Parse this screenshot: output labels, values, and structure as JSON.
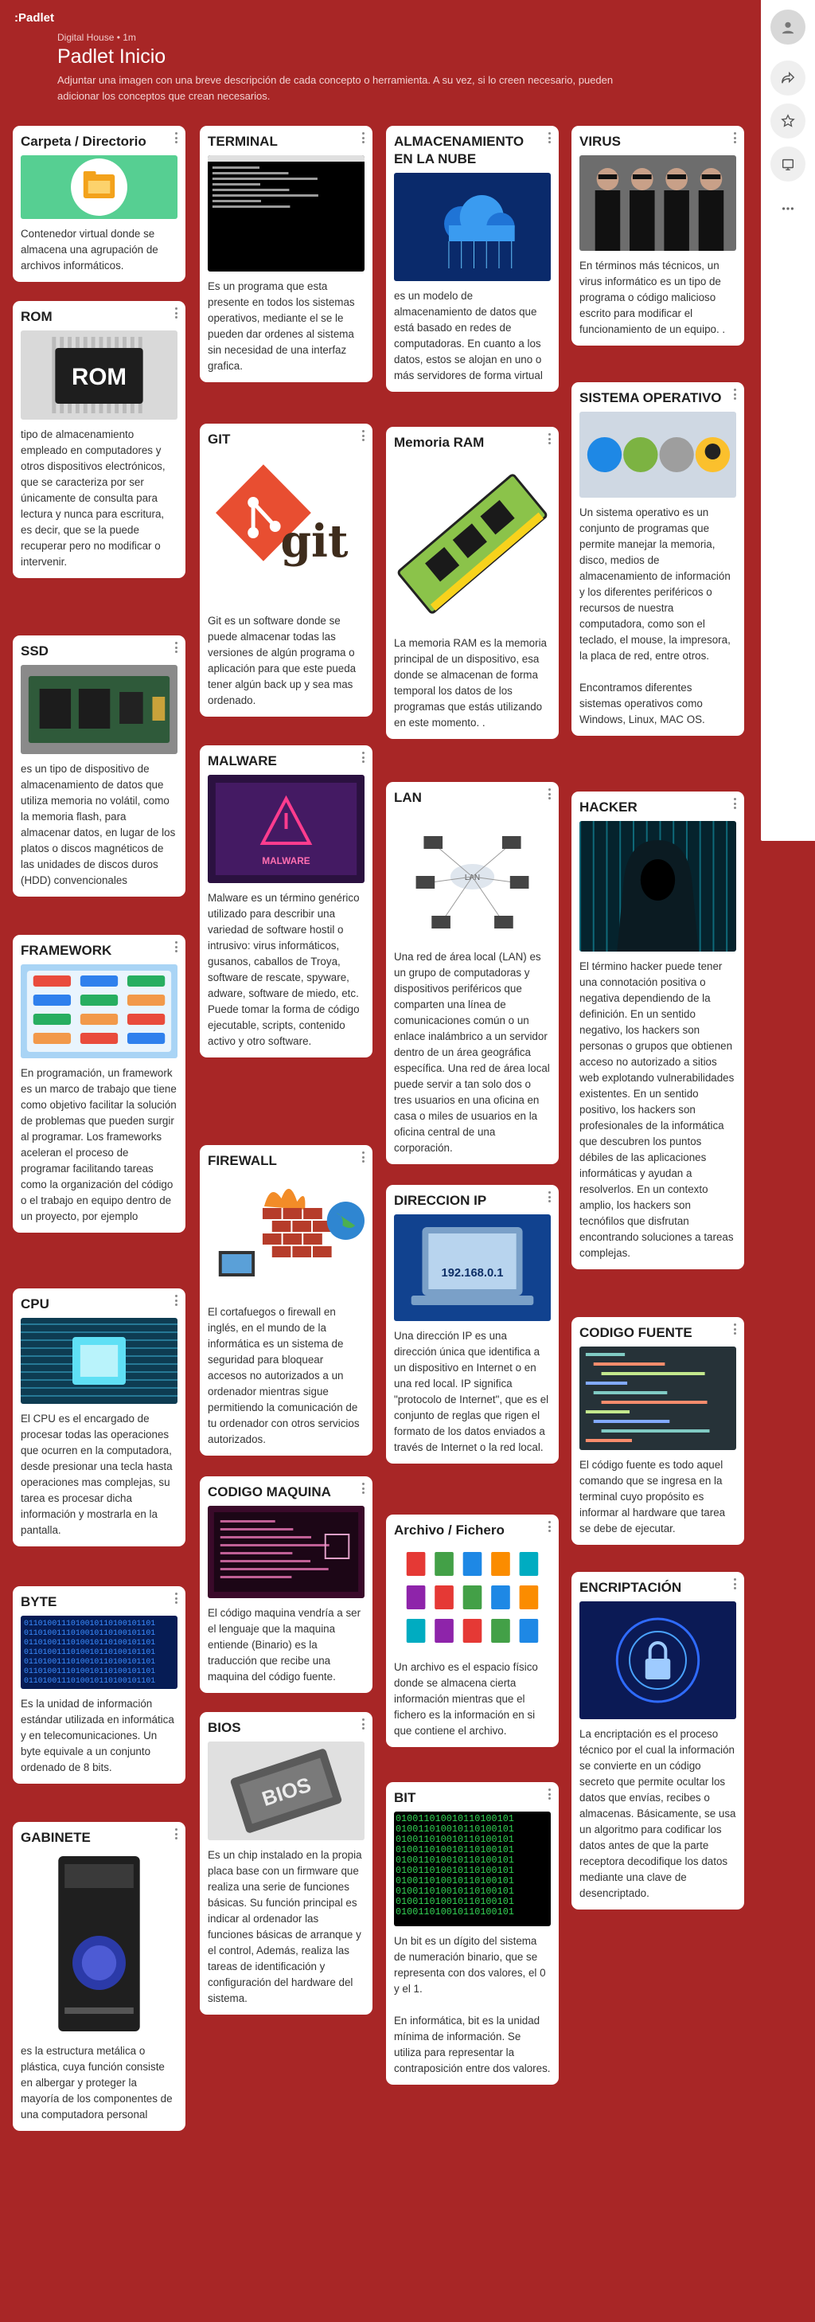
{
  "app": {
    "logo": ":Padlet"
  },
  "header": {
    "meta": "Digital House • 1m",
    "title": "Padlet Inicio",
    "description": "Adjuntar una imagen con una breve descripción de cada concepto o herramienta. A su vez, si lo creen necesario, pueden adicionar los conceptos que crean necesarios."
  },
  "rail": {
    "icons": [
      "avatar-icon",
      "share-icon",
      "star-icon",
      "slideshow-icon",
      "more-icon"
    ]
  },
  "columns": [
    [
      {
        "title": "Carpeta / Directorio",
        "image": "folder",
        "text": "Contenedor virtual donde se almacena una agrupación de archivos informáticos."
      },
      {
        "title": "ROM",
        "image": "rom-chip",
        "text": "tipo de almacenamiento empleado en computadores y otros dispositivos electrónicos, que se caracteriza por ser únicamente de consulta para lectura y nunca para escritura, es decir, que se la puede recuperar pero no modificar o intervenir."
      },
      {
        "title": "SSD",
        "image": "ssd",
        "text": "es un tipo de dispositivo de almacenamiento de datos que utiliza memoria no volátil, como la memoria flash, para almacenar datos, en lugar de los platos o discos magnéticos de las unidades de discos duros (HDD) convencionales"
      },
      {
        "title": "FRAMEWORK",
        "image": "frameworks",
        "text": "En programación, un framework es un marco de trabajo que tiene como objetivo facilitar la solución de problemas que pueden surgir al programar. Los frameworks aceleran el proceso de programar facilitando tareas como la organización del código o el trabajo en equipo dentro de un proyecto, por ejemplo"
      },
      {
        "title": "CPU",
        "image": "cpu",
        "text": "El CPU es el encargado de procesar todas las operaciones que ocurren en la computadora, desde presionar una tecla hasta operaciones mas complejas, su tarea es procesar dicha información y mostrarla en la pantalla."
      },
      {
        "title": "BYTE",
        "image": "byte",
        "text": "Es la unidad de información estándar utilizada en informática y en telecomunicaciones. Un byte equivale a un conjunto ordenado de 8 bits."
      },
      {
        "title": "GABINETE",
        "image": "case",
        "text": "es la estructura metálica o plástica, cuya función consiste en albergar y proteger la mayoría de los componentes de una computadora personal"
      }
    ],
    [
      {
        "title": "TERMINAL",
        "image": "terminal",
        "text": "Es un programa que esta presente en todos los sistemas operativos, mediante el se le pueden dar ordenes al sistema sin necesidad de una interfaz grafica."
      },
      {
        "title": "GIT",
        "image": "git",
        "text": "Git es un software donde se puede almacenar todas las versiones de algún programa o aplicación para que este pueda tener algún back up y sea mas ordenado."
      },
      {
        "title": "MALWARE",
        "image": "malware",
        "text": "Malware es un término genérico utilizado para describir una variedad de software hostil o intrusivo: virus informáticos, gusanos, caballos de Troya, software de rescate, spyware, adware, software de miedo, etc. Puede tomar la forma de código ejecutable, scripts, contenido activo y otro software."
      },
      {
        "title": "FIREWALL",
        "image": "firewall",
        "text": "El cortafuegos o firewall en inglés, en el mundo de la informática es un sistema de seguridad para bloquear accesos no autorizados a un ordenador mientras sigue permitiendo la comunicación de tu ordenador con otros servicios autorizados."
      },
      {
        "title": "CODIGO MAQUINA",
        "image": "machine-code",
        "text": "El código maquina vendría a ser el lenguaje que la maquina entiende (Binario) es la traducción que recibe una maquina del código fuente."
      },
      {
        "title": "BIOS",
        "image": "bios",
        "text": "Es un chip instalado en la propia placa base con un firmware que realiza una serie de funciones básicas. Su función principal es indicar al ordenador las funciones básicas de arranque y el control, Además, realiza las tareas de identificación y configuración del hardware del sistema."
      }
    ],
    [
      {
        "title": "ALMACENAMIENTO EN LA NUBE",
        "image": "cloud",
        "text": "es un modelo de almacenamiento de datos que está basado en redes de computadoras. En cuanto a los datos, estos se alojan en uno o más servidores de forma virtual"
      },
      {
        "title": "Memoria RAM",
        "image": "ram",
        "text": "La memoria RAM es la memoria principal de un dispositivo, esa donde se almacenan de forma temporal los datos de los programas que estás utilizando en este momento. ."
      },
      {
        "title": "LAN",
        "image": "lan",
        "text": "Una red de área local (LAN) es un grupo de computadoras y dispositivos periféricos que comparten una línea de comunicaciones común o un enlace inalámbrico a un servidor dentro de un área geográfica específica. Una red de área local puede servir a tan solo dos o tres usuarios en una oficina en casa o miles de usuarios en la oficina central de una corporación."
      },
      {
        "title": "DIRECCION IP",
        "image": "ip",
        "text": "Una dirección IP es una dirección única que identifica a un dispositivo en Internet o en una red local. IP significa \"protocolo de Internet\", que es el conjunto de reglas que rigen el formato de los datos enviados a través de Internet o la red local."
      },
      {
        "title": "Archivo / Fichero",
        "image": "files",
        "text": "Un archivo es el espacio físico donde se almacena cierta información mientras que el fichero es la información en si que contiene el archivo."
      },
      {
        "title": "BIT",
        "image": "bit",
        "text": "Un bit es un dígito del sistema de numeración binario, que se representa con dos valores, el 0 y el 1.\n\nEn informática, bit es la unidad mínima de información. Se utiliza para representar la contraposición entre dos valores."
      }
    ],
    [
      {
        "title": "VIRUS",
        "image": "virus",
        "text": "En términos más técnicos, un virus informático es un tipo de programa o código malicioso escrito para modificar el funcionamiento de un equipo. ."
      },
      {
        "title": "SISTEMA OPERATIVO",
        "image": "os",
        "text": "Un sistema operativo es un conjunto de programas que permite manejar la memoria, disco, medios de almacenamiento de información y los diferentes periféricos o recursos de nuestra computadora, como son el teclado, el mouse, la impresora, la placa de red, entre otros.\n\nEncontramos diferentes sistemas operativos como Windows, Linux, MAC OS."
      },
      {
        "title": "HACKER",
        "image": "hacker",
        "text": "El término hacker puede tener una connotación positiva o negativa dependiendo de la definición. En un sentido negativo, los hackers son personas o grupos que obtienen acceso no autorizado a sitios web explotando vulnerabilidades existentes. En un sentido positivo, los hackers son profesionales de la informática que descubren los puntos débiles de las aplicaciones informáticas y ayudan a resolverlos. En un contexto amplio, los hackers son tecnófilos que disfrutan encontrando soluciones a tareas complejas."
      },
      {
        "title": "CODIGO FUENTE",
        "image": "source-code",
        "text": "El código fuente es todo aquel comando que se ingresa en la terminal cuyo propósito es informar al hardware que tarea se debe de ejecutar."
      },
      {
        "title": "ENCRIPTACIÓN",
        "image": "encryption",
        "text": "La encriptación es el proceso técnico por el cual la información se convierte en un código secreto que permite ocultar los datos que envías, recibes o almacenas. Básicamente, se usa un algoritmo para codificar los datos antes de que la parte receptora decodifique los datos mediante una clave de desencriptado."
      }
    ]
  ],
  "image_text": {
    "rom": "ROM",
    "git": "git",
    "ip": "192.168.0.1",
    "bios": "BIOS",
    "lan": "LAN",
    "malware": "MALWARE"
  }
}
